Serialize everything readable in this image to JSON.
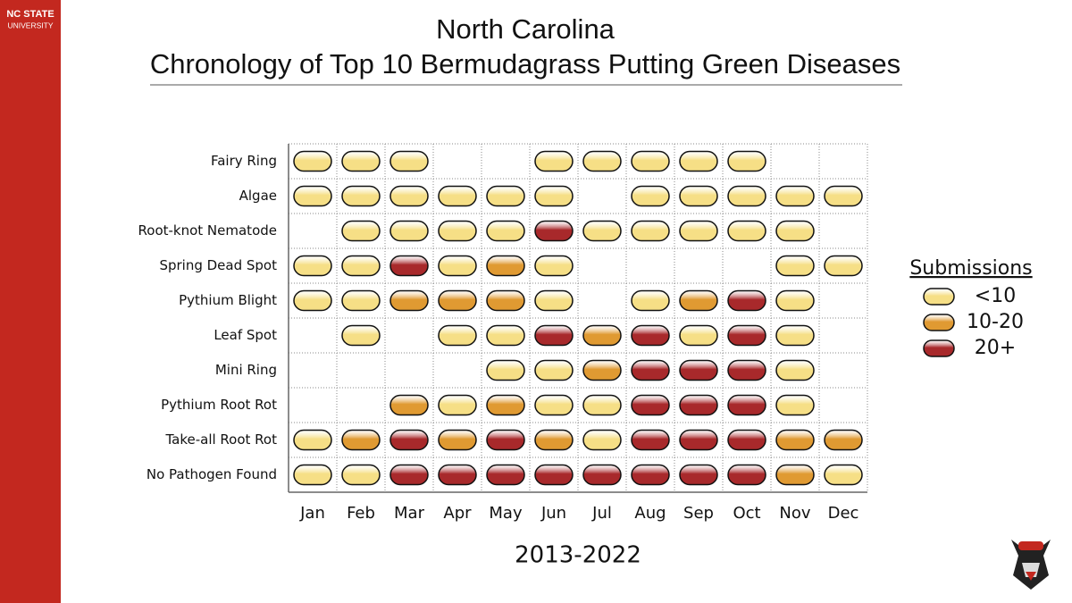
{
  "header": {
    "brand_line1": "NC STATE",
    "brand_line2": "UNIVERSITY"
  },
  "chart_data": {
    "type": "heatmap",
    "title": "North Carolina",
    "subtitle": "Chronology of Top 10 Bermudagrass Putting Green Diseases",
    "xlabel": "2013-2022",
    "x_categories": [
      "Jan",
      "Feb",
      "Mar",
      "Apr",
      "May",
      "Jun",
      "Jul",
      "Aug",
      "Sep",
      "Oct",
      "Nov",
      "Dec"
    ],
    "y_categories": [
      "Fairy Ring",
      "Algae",
      "Root-knot Nematode",
      "Spring Dead Spot",
      "Pythium Blight",
      "Leaf Spot",
      "Mini Ring",
      "Pythium Root Rot",
      "Take-all Root Rot",
      "No Pathogen Found"
    ],
    "legend": {
      "title": "Submissions",
      "items": [
        {
          "label": "<10",
          "color": "#f6df86"
        },
        {
          "label": "10-20",
          "color": "#e09a32"
        },
        {
          "label": "20+",
          "color": "#a8292b"
        }
      ]
    },
    "values": [
      [
        0,
        0,
        0,
        null,
        null,
        0,
        0,
        0,
        0,
        0,
        null,
        null
      ],
      [
        0,
        0,
        0,
        0,
        0,
        0,
        null,
        0,
        0,
        0,
        0,
        0
      ],
      [
        null,
        0,
        0,
        0,
        0,
        2,
        0,
        0,
        0,
        0,
        0,
        null
      ],
      [
        0,
        0,
        2,
        0,
        1,
        0,
        null,
        null,
        null,
        null,
        0,
        0
      ],
      [
        0,
        0,
        1,
        1,
        1,
        0,
        null,
        0,
        1,
        2,
        0,
        null
      ],
      [
        null,
        0,
        null,
        0,
        0,
        2,
        1,
        2,
        0,
        2,
        0,
        null
      ],
      [
        null,
        null,
        null,
        null,
        0,
        0,
        1,
        2,
        2,
        2,
        0,
        null
      ],
      [
        null,
        null,
        1,
        0,
        1,
        0,
        0,
        2,
        2,
        2,
        0,
        null
      ],
      [
        0,
        1,
        2,
        1,
        2,
        1,
        0,
        2,
        2,
        2,
        1,
        1
      ],
      [
        0,
        0,
        2,
        2,
        2,
        2,
        2,
        2,
        2,
        2,
        1,
        0
      ]
    ]
  }
}
